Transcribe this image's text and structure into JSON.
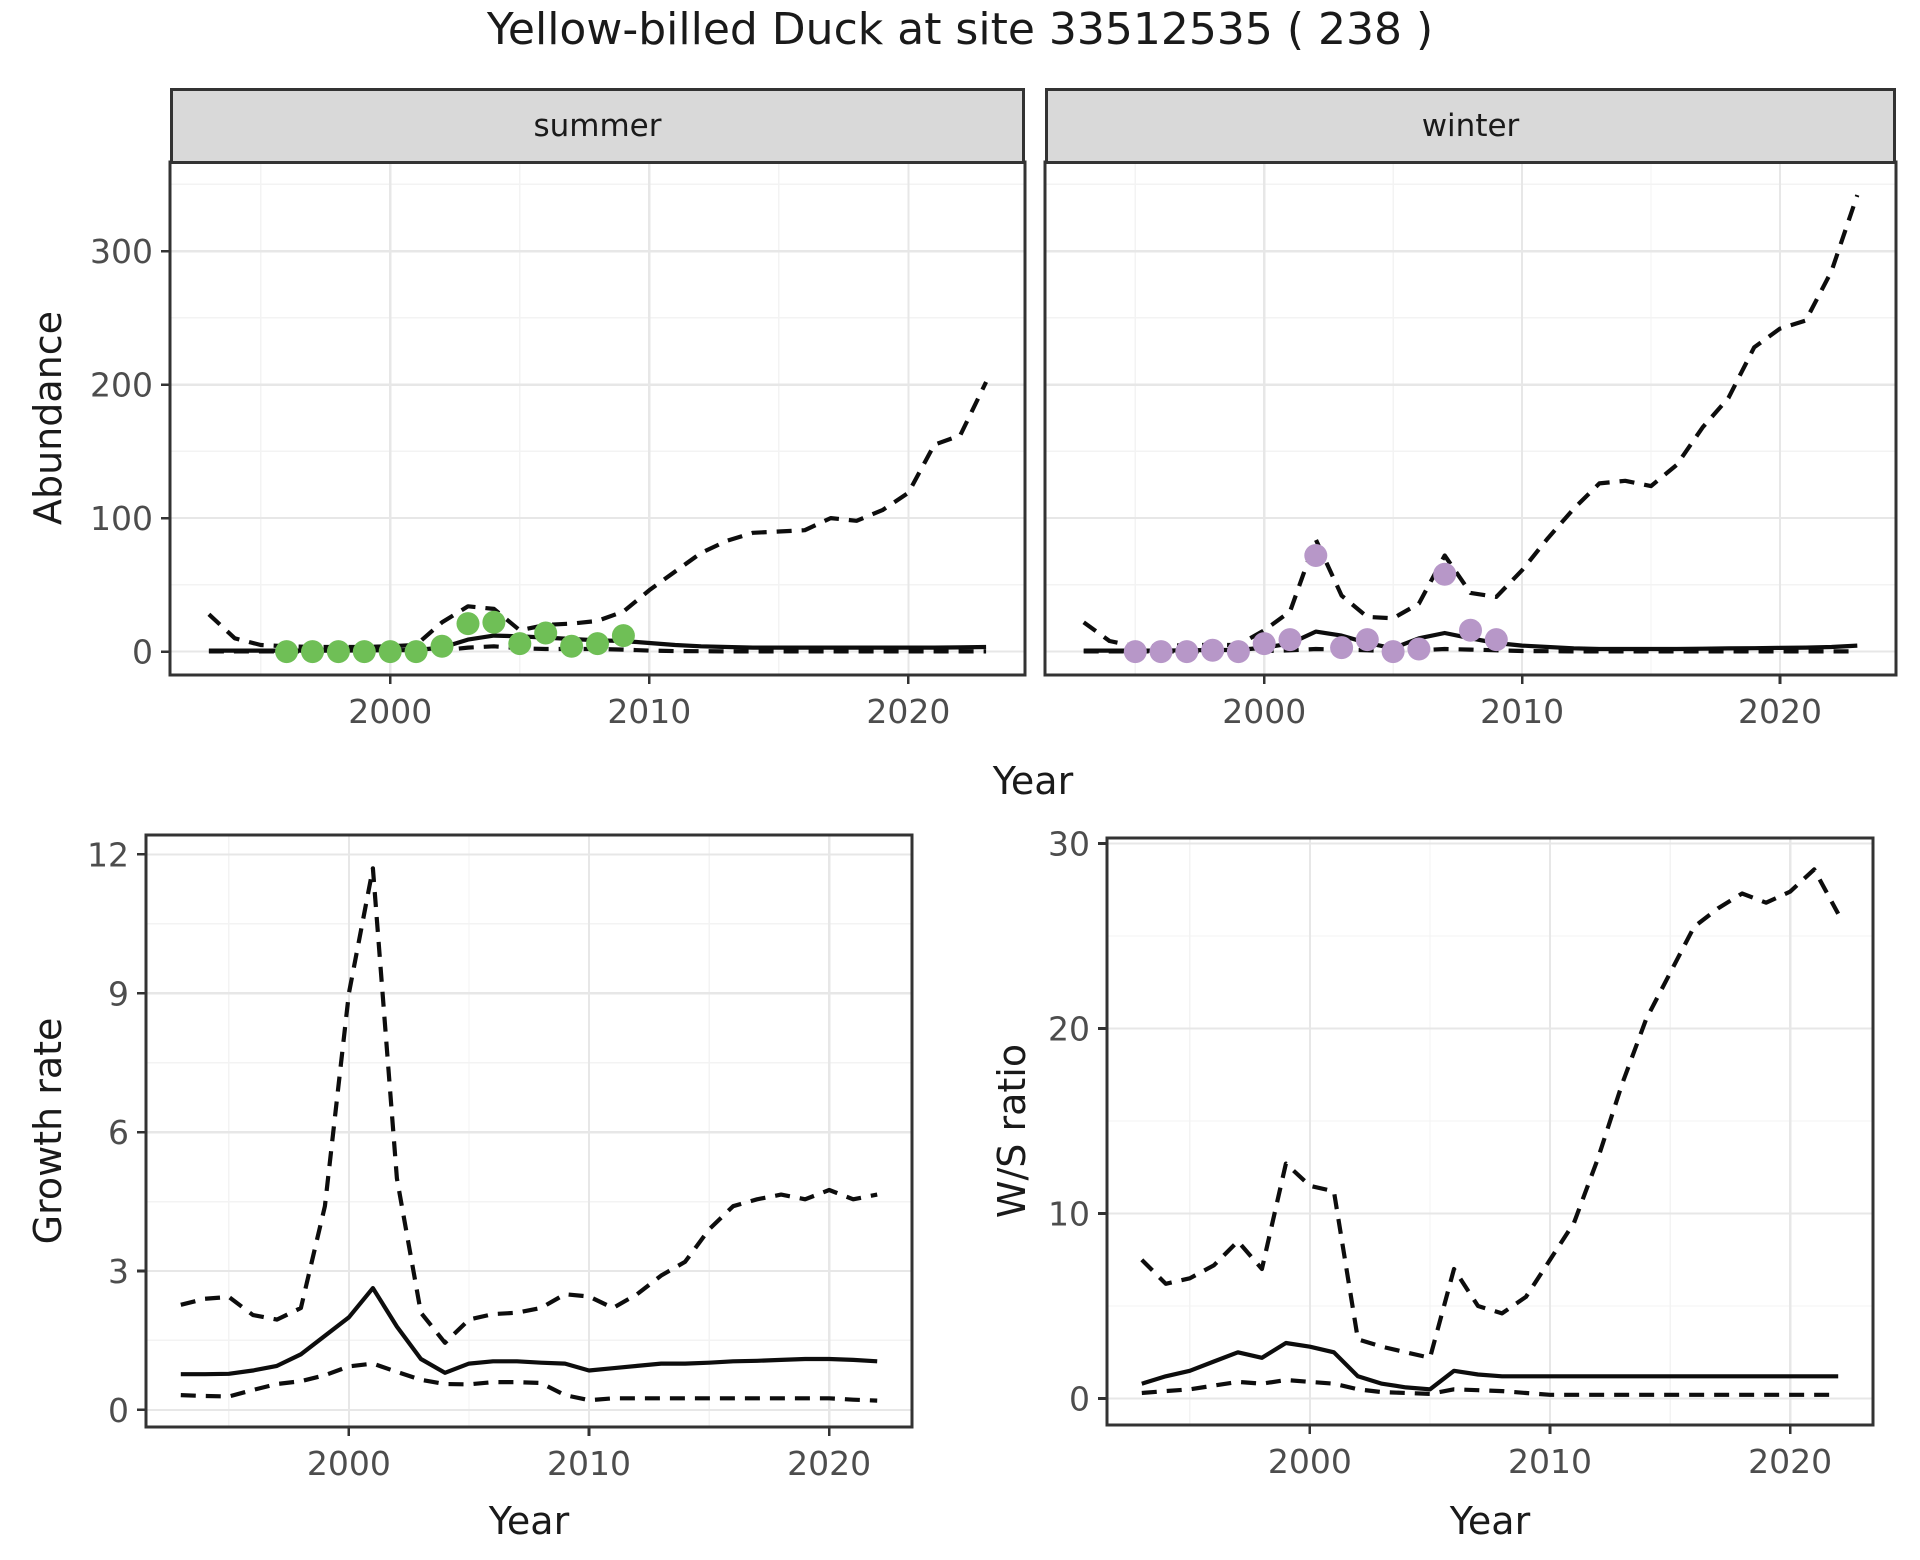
{
  "title": "Yellow-billed Duck at site 33512535 ( 238 )",
  "colors": {
    "summer_points": "#6FBF56",
    "winter_points": "#B797C8",
    "line": "#0d0d0d",
    "grid_major": "#E7E7E7",
    "grid_minor": "#F3F3F3",
    "strip_bg": "#D9D9D9",
    "panel_border": "#333333",
    "axis_text": "#4D4D4D",
    "title_text": "#1a1a1a"
  },
  "chart_data": [
    {
      "id": "abundance-summer",
      "type": "line",
      "facet_label": "summer",
      "xlabel": "Year",
      "ylabel": "Abundance",
      "xlim": [
        1991.5,
        2024.5
      ],
      "ylim": [
        -17.5,
        366.8
      ],
      "xticks": [
        2000,
        2010,
        2020
      ],
      "yticks": [
        0,
        100,
        200,
        300
      ],
      "xminor": [
        1995,
        2005,
        2015
      ],
      "yminor": [
        50,
        150,
        250,
        350
      ],
      "grid": true,
      "legend": "none",
      "series": [
        {
          "name": "upper-credible-limit",
          "style": "dashed",
          "x": [
            1993,
            1994,
            1995,
            1996,
            1997,
            1998,
            1999,
            2000,
            2001,
            2002,
            2003,
            2004,
            2005,
            2006,
            2007,
            2008,
            2009,
            2010,
            2011,
            2012,
            2013,
            2014,
            2015,
            2016,
            2017,
            2018,
            2019,
            2020,
            2021,
            2022,
            2023
          ],
          "y": [
            28,
            10,
            5,
            4,
            3.5,
            3.5,
            3.5,
            4,
            5,
            22,
            34,
            32,
            16,
            20,
            21,
            23,
            30,
            46,
            60,
            74,
            83,
            89,
            90,
            91,
            100,
            98,
            106,
            119,
            155,
            162,
            202
          ]
        },
        {
          "name": "median-abundance",
          "style": "solid",
          "x": [
            1993,
            1994,
            1995,
            1996,
            1997,
            1998,
            1999,
            2000,
            2001,
            2002,
            2003,
            2004,
            2005,
            2006,
            2007,
            2008,
            2009,
            2010,
            2011,
            2012,
            2013,
            2014,
            2015,
            2016,
            2017,
            2018,
            2019,
            2020,
            2021,
            2022,
            2023
          ],
          "y": [
            0.8,
            0.8,
            0.8,
            0.8,
            0.8,
            0.8,
            0.9,
            1,
            1.2,
            3,
            9,
            12,
            11.5,
            10.5,
            9.5,
            8.5,
            8,
            6.5,
            5,
            4,
            3.5,
            3,
            3,
            3,
            3,
            3,
            3,
            3,
            3,
            3.2,
            3.5
          ]
        },
        {
          "name": "lower-credible-limit",
          "style": "dashed",
          "x": [
            1993,
            1994,
            1995,
            1996,
            1997,
            1998,
            1999,
            2000,
            2001,
            2002,
            2003,
            2004,
            2005,
            2006,
            2007,
            2008,
            2009,
            2010,
            2011,
            2012,
            2013,
            2014,
            2015,
            2016,
            2017,
            2018,
            2019,
            2020,
            2021,
            2022,
            2023
          ],
          "y": [
            0.2,
            0.2,
            0.2,
            0.2,
            0.2,
            0.2,
            0.2,
            0.3,
            0.4,
            1,
            3,
            4,
            2.5,
            2,
            2,
            2,
            1.5,
            0.8,
            0.4,
            0.3,
            0.2,
            0.2,
            0.2,
            0.2,
            0.2,
            0.2,
            0.2,
            0.2,
            0.2,
            0.2,
            0.2
          ]
        }
      ],
      "points": {
        "name": "observed-summer-counts",
        "color": "#6FBF56",
        "x": [
          1996,
          1997,
          1998,
          1999,
          2000,
          2001,
          2002,
          2003,
          2004,
          2005,
          2006,
          2007,
          2008,
          2009
        ],
        "y": [
          0,
          0,
          0,
          0,
          0,
          0,
          4,
          21,
          22,
          6,
          14,
          4,
          6,
          12
        ]
      }
    },
    {
      "id": "abundance-winter",
      "type": "line",
      "facet_label": "winter",
      "xlabel": "Year",
      "ylabel": "",
      "xlim": [
        1991.5,
        2024.5
      ],
      "ylim": [
        -17.5,
        366.8
      ],
      "xticks": [
        2000,
        2010,
        2020
      ],
      "yticks": [
        0,
        100,
        200,
        300
      ],
      "xminor": [
        1995,
        2005,
        2015
      ],
      "yminor": [
        50,
        150,
        250,
        350
      ],
      "grid": true,
      "legend": "none",
      "series": [
        {
          "name": "upper-credible-limit",
          "style": "dashed",
          "x": [
            1993,
            1994,
            1995,
            1996,
            1997,
            1998,
            1999,
            2000,
            2001,
            2002,
            2003,
            2004,
            2005,
            2006,
            2007,
            2008,
            2009,
            2010,
            2011,
            2012,
            2013,
            2014,
            2015,
            2016,
            2017,
            2018,
            2019,
            2020,
            2021,
            2022,
            2023
          ],
          "y": [
            22,
            8,
            4,
            4,
            5,
            5,
            5,
            16,
            30,
            84,
            42,
            26,
            25,
            36,
            72,
            44,
            41,
            61,
            85,
            107,
            126,
            128,
            124,
            140,
            168,
            190,
            228,
            242,
            248,
            285,
            342
          ]
        },
        {
          "name": "median-abundance",
          "style": "solid",
          "x": [
            1993,
            1994,
            1995,
            1996,
            1997,
            1998,
            1999,
            2000,
            2001,
            2002,
            2003,
            2004,
            2005,
            2006,
            2007,
            2008,
            2009,
            2010,
            2011,
            2012,
            2013,
            2014,
            2015,
            2016,
            2017,
            2018,
            2019,
            2020,
            2021,
            2022,
            2023
          ],
          "y": [
            0.8,
            0.8,
            0.8,
            0.8,
            1,
            1.2,
            1.2,
            3,
            6,
            15,
            12,
            6.5,
            2.5,
            10,
            14,
            10,
            6.5,
            4.5,
            3.5,
            2.5,
            2,
            2,
            2,
            2,
            2.2,
            2.4,
            2.6,
            2.8,
            3,
            3.5,
            4.5
          ]
        },
        {
          "name": "lower-credible-limit",
          "style": "dashed",
          "x": [
            1993,
            1994,
            1995,
            1996,
            1997,
            1998,
            1999,
            2000,
            2001,
            2002,
            2003,
            2004,
            2005,
            2006,
            2007,
            2008,
            2009,
            2010,
            2011,
            2012,
            2013,
            2014,
            2015,
            2016,
            2017,
            2018,
            2019,
            2020,
            2021,
            2022,
            2023
          ],
          "y": [
            0.2,
            0.2,
            0.2,
            0.2,
            0.2,
            0.2,
            0.2,
            0.5,
            1,
            2,
            1.5,
            1,
            0.5,
            1,
            2,
            1.5,
            1,
            0.5,
            0.3,
            0.2,
            0.2,
            0.2,
            0.2,
            0.2,
            0.2,
            0.2,
            0.2,
            0.2,
            0.2,
            0.2,
            0.2
          ]
        }
      ],
      "points": {
        "name": "observed-winter-counts",
        "color": "#B797C8",
        "x": [
          1995,
          1996,
          1997,
          1998,
          1999,
          2000,
          2001,
          2002,
          2003,
          2004,
          2005,
          2006,
          2007,
          2008,
          2009
        ],
        "y": [
          0,
          0,
          0,
          1,
          0,
          6,
          9,
          72,
          3,
          9,
          0,
          2,
          58,
          16,
          9
        ]
      }
    },
    {
      "id": "growth-rate",
      "type": "line",
      "facet_label": "",
      "xlabel": "Year",
      "ylabel": "Growth rate",
      "xlim": [
        1991.55,
        2023.45
      ],
      "ylim": [
        -0.37,
        12.42
      ],
      "xticks": [
        2000,
        2010,
        2020
      ],
      "yticks": [
        0,
        3,
        6,
        9,
        12
      ],
      "xminor": [
        1995,
        2005,
        2015
      ],
      "yminor": [
        1.5,
        4.5,
        7.5,
        10.5
      ],
      "grid": true,
      "legend": "none",
      "series": [
        {
          "name": "upper-credible-limit",
          "style": "dashed",
          "x": [
            1993,
            1994,
            1995,
            1996,
            1997,
            1998,
            1999,
            2000,
            2001,
            2002,
            2003,
            2004,
            2005,
            2006,
            2007,
            2008,
            2009,
            2010,
            2011,
            2012,
            2013,
            2014,
            2015,
            2016,
            2017,
            2018,
            2019,
            2020,
            2021,
            2022
          ],
          "y": [
            2.27,
            2.4,
            2.44,
            2.05,
            1.95,
            2.2,
            4.4,
            9,
            11.7,
            5,
            2.1,
            1.45,
            1.95,
            2.07,
            2.1,
            2.2,
            2.5,
            2.45,
            2.2,
            2.5,
            2.9,
            3.2,
            3.9,
            4.4,
            4.55,
            4.65,
            4.55,
            4.75,
            4.55,
            4.65
          ]
        },
        {
          "name": "median-growth-rate",
          "style": "solid",
          "x": [
            1993,
            1994,
            1995,
            1996,
            1997,
            1998,
            1999,
            2000,
            2001,
            2002,
            2003,
            2004,
            2005,
            2006,
            2007,
            2008,
            2009,
            2010,
            2011,
            2012,
            2013,
            2014,
            2015,
            2016,
            2017,
            2018,
            2019,
            2020,
            2021,
            2022
          ],
          "y": [
            0.77,
            0.77,
            0.78,
            0.85,
            0.95,
            1.2,
            1.6,
            2,
            2.63,
            1.8,
            1.1,
            0.8,
            1,
            1.05,
            1.05,
            1.02,
            1,
            0.85,
            0.9,
            0.95,
            1,
            1,
            1.02,
            1.05,
            1.06,
            1.08,
            1.1,
            1.1,
            1.08,
            1.05
          ]
        },
        {
          "name": "lower-credible-limit",
          "style": "dashed",
          "x": [
            1993,
            1994,
            1995,
            1996,
            1997,
            1998,
            1999,
            2000,
            2001,
            2002,
            2003,
            2004,
            2005,
            2006,
            2007,
            2008,
            2009,
            2010,
            2011,
            2012,
            2013,
            2014,
            2015,
            2016,
            2017,
            2018,
            2019,
            2020,
            2021,
            2022
          ],
          "y": [
            0.32,
            0.3,
            0.29,
            0.43,
            0.56,
            0.62,
            0.75,
            0.94,
            1,
            0.82,
            0.65,
            0.56,
            0.55,
            0.6,
            0.6,
            0.58,
            0.32,
            0.21,
            0.25,
            0.25,
            0.25,
            0.25,
            0.25,
            0.25,
            0.25,
            0.25,
            0.25,
            0.25,
            0.22,
            0.2
          ]
        }
      ]
    },
    {
      "id": "ws-ratio",
      "type": "line",
      "facet_label": "",
      "xlabel": "Year",
      "ylabel": "W/S ratio",
      "xlim": [
        1991.55,
        2023.45
      ],
      "ylim": [
        -1.43,
        30.3
      ],
      "xticks": [
        2000,
        2010,
        2020
      ],
      "yticks": [
        0,
        10,
        20,
        30
      ],
      "xminor": [
        1995,
        2005,
        2015
      ],
      "yminor": [
        5,
        15,
        25
      ],
      "grid": true,
      "legend": "none",
      "series": [
        {
          "name": "upper-credible-limit",
          "style": "dashed",
          "x": [
            1993,
            1994,
            1995,
            1996,
            1997,
            1998,
            1999,
            2000,
            2001,
            2002,
            2003,
            2004,
            2005,
            2006,
            2007,
            2008,
            2009,
            2010,
            2011,
            2012,
            2013,
            2014,
            2015,
            2016,
            2017,
            2018,
            2019,
            2020,
            2021,
            2022
          ],
          "y": [
            7.5,
            6.2,
            6.5,
            7.2,
            8.5,
            7,
            12.7,
            11.5,
            11.2,
            3.2,
            2.8,
            2.5,
            2.2,
            7,
            5,
            4.6,
            5.5,
            7.5,
            9.5,
            13,
            17,
            20.5,
            23,
            25.5,
            26.5,
            27.3,
            26.8,
            27.4,
            28.6,
            26.2
          ]
        },
        {
          "name": "median-ws-ratio",
          "style": "solid",
          "x": [
            1993,
            1994,
            1995,
            1996,
            1997,
            1998,
            1999,
            2000,
            2001,
            2002,
            2003,
            2004,
            2005,
            2006,
            2007,
            2008,
            2009,
            2010,
            2011,
            2012,
            2013,
            2014,
            2015,
            2016,
            2017,
            2018,
            2019,
            2020,
            2021,
            2022
          ],
          "y": [
            0.8,
            1.2,
            1.5,
            2,
            2.5,
            2.2,
            3,
            2.8,
            2.5,
            1.2,
            0.8,
            0.6,
            0.5,
            1.5,
            1.3,
            1.2,
            1.2,
            1.2,
            1.2,
            1.2,
            1.2,
            1.2,
            1.2,
            1.2,
            1.2,
            1.2,
            1.2,
            1.2,
            1.2,
            1.2
          ]
        },
        {
          "name": "lower-credible-limit",
          "style": "dashed",
          "x": [
            1993,
            1994,
            1995,
            1996,
            1997,
            1998,
            1999,
            2000,
            2001,
            2002,
            2003,
            2004,
            2005,
            2006,
            2007,
            2008,
            2009,
            2010,
            2011,
            2012,
            2013,
            2014,
            2015,
            2016,
            2017,
            2018,
            2019,
            2020,
            2021,
            2022
          ],
          "y": [
            0.3,
            0.4,
            0.5,
            0.7,
            0.9,
            0.8,
            1,
            0.9,
            0.8,
            0.5,
            0.35,
            0.3,
            0.25,
            0.5,
            0.45,
            0.4,
            0.3,
            0.2,
            0.2,
            0.2,
            0.2,
            0.2,
            0.2,
            0.2,
            0.2,
            0.2,
            0.2,
            0.2,
            0.2,
            0.2
          ]
        }
      ]
    }
  ]
}
